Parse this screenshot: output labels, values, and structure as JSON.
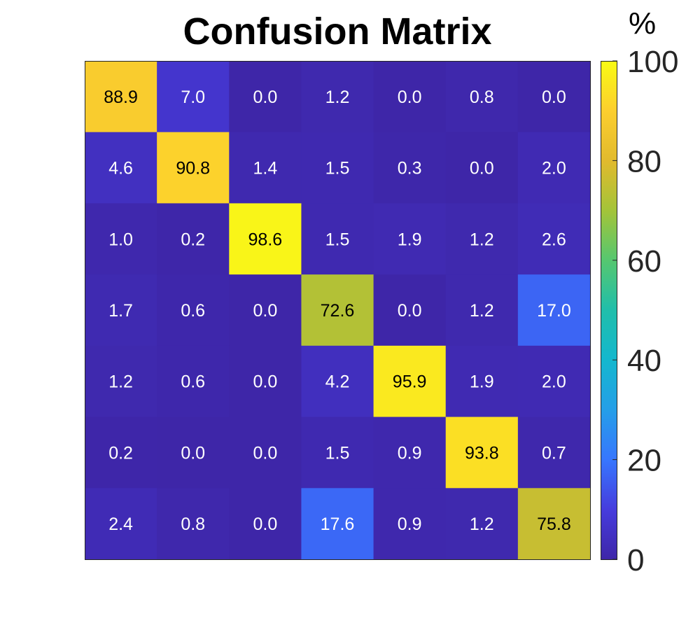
{
  "chart_data": {
    "type": "heatmap",
    "title": "Confusion Matrix",
    "colormap": "parula",
    "colorbar": {
      "label": "%",
      "range": [
        0,
        100
      ],
      "ticks": [
        0,
        20,
        40,
        60,
        80,
        100
      ],
      "tick_labels": [
        "0",
        "20",
        "40",
        "60",
        "80",
        "100"
      ]
    },
    "matrix": [
      [
        88.9,
        7.0,
        0.0,
        1.2,
        0.0,
        0.8,
        0.0
      ],
      [
        4.6,
        90.8,
        1.4,
        1.5,
        0.3,
        0.0,
        2.0
      ],
      [
        1.0,
        0.2,
        98.6,
        1.5,
        1.9,
        1.2,
        2.6
      ],
      [
        1.7,
        0.6,
        0.0,
        72.6,
        0.0,
        1.2,
        17.0
      ],
      [
        1.2,
        0.6,
        0.0,
        4.2,
        95.9,
        1.9,
        2.0
      ],
      [
        0.2,
        0.0,
        0.0,
        1.5,
        0.9,
        93.8,
        0.7
      ],
      [
        2.4,
        0.8,
        0.0,
        17.6,
        0.9,
        1.2,
        75.8
      ]
    ],
    "value_format": "0.0",
    "label_color_dark": "#000000",
    "label_color_light": "#ffffff",
    "grid": false
  }
}
